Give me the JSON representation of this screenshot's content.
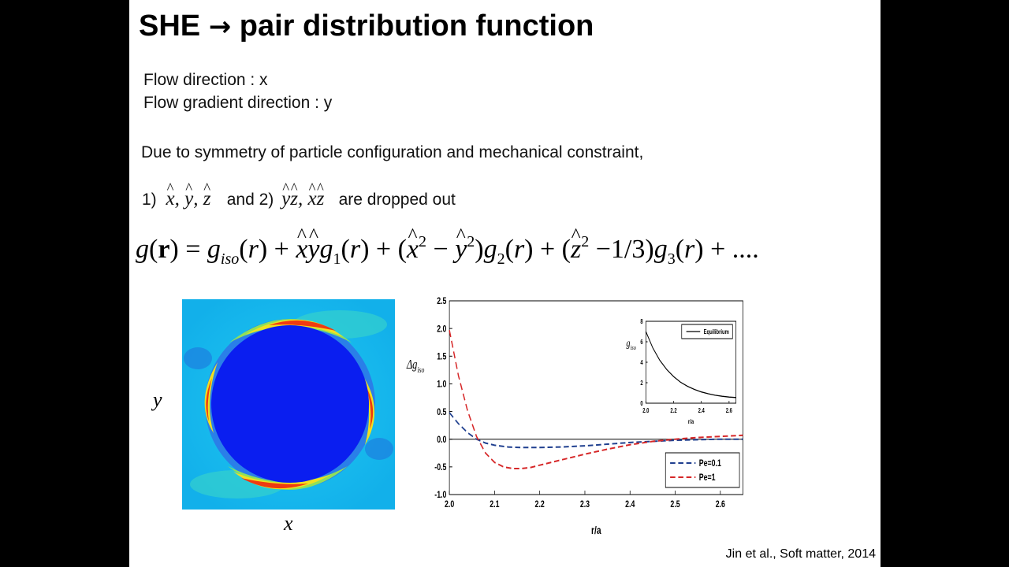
{
  "slide": {
    "title_left": "SHE",
    "title_arrow": "→",
    "title_right": "pair distribution function",
    "flow_direction": "Flow direction : x",
    "flow_gradient": "Flow gradient direction : y",
    "symmetry_text": "Due to symmetry of particle configuration and mechanical constraint,",
    "dropped_prefix": "1)",
    "dropped_terms_1": "x, y, z",
    "dropped_middle": "and 2)",
    "dropped_terms_2": "yz, xz",
    "dropped_suffix": "are dropped out",
    "equation": "g(r) = g_iso(r) + x̂ŷ g1(r) + (x̂² − ŷ²) g2(r) + (ẑ² − 1/3) g3(r) + ....",
    "heatmap_x_label": "x",
    "heatmap_y_label": "y",
    "citation": "Jin et al., Soft matter, 2014"
  },
  "colors": {
    "background": "#000000",
    "slide": "#ffffff",
    "pe01": "#1f3f8f",
    "pe1": "#d62728",
    "heat_bg": "#18b8ee",
    "heat_core": "#0a1ef0"
  },
  "chart_data": [
    {
      "type": "line",
      "title": "",
      "xlabel": "r/a",
      "ylabel": "Δg_iso",
      "xlim": [
        2.0,
        2.65
      ],
      "ylim": [
        -1.0,
        2.5
      ],
      "xticks": [
        2.0,
        2.1,
        2.2,
        2.3,
        2.4,
        2.5,
        2.6
      ],
      "yticks": [
        -1.0,
        -0.5,
        0.0,
        0.5,
        1.0,
        1.5,
        2.0,
        2.5
      ],
      "xtick_labels": [
        "2.0",
        "2.1",
        "2.2",
        "2.3",
        "2.4",
        "2.5",
        "2.6"
      ],
      "ytick_labels": [
        "-1.0",
        "-0.5",
        "0.0",
        "0.5",
        "1.0",
        "1.5",
        "2.0",
        "2.5"
      ],
      "legend_position": "bottom-right",
      "series": [
        {
          "name": "Pe=0.1",
          "style": "dashed",
          "color": "#1f3f8f",
          "x": [
            2.0,
            2.02,
            2.04,
            2.06,
            2.08,
            2.1,
            2.13,
            2.16,
            2.2,
            2.25,
            2.3,
            2.35,
            2.4,
            2.45,
            2.5,
            2.55,
            2.6,
            2.65
          ],
          "y": [
            0.48,
            0.28,
            0.12,
            0.0,
            -0.07,
            -0.11,
            -0.14,
            -0.15,
            -0.15,
            -0.14,
            -0.12,
            -0.09,
            -0.06,
            -0.04,
            -0.02,
            -0.01,
            0.0,
            0.0
          ]
        },
        {
          "name": "Pe=1",
          "style": "dashed",
          "color": "#d62728",
          "x": [
            2.0,
            2.02,
            2.04,
            2.06,
            2.08,
            2.1,
            2.12,
            2.14,
            2.16,
            2.18,
            2.2,
            2.25,
            2.3,
            2.35,
            2.4,
            2.45,
            2.5,
            2.55,
            2.6,
            2.65
          ],
          "y": [
            1.97,
            1.15,
            0.52,
            0.05,
            -0.25,
            -0.42,
            -0.5,
            -0.53,
            -0.53,
            -0.51,
            -0.47,
            -0.37,
            -0.27,
            -0.18,
            -0.1,
            -0.04,
            0.0,
            0.03,
            0.05,
            0.07
          ]
        }
      ]
    },
    {
      "type": "line",
      "title": "",
      "xlabel": "r/a",
      "ylabel": "g_iso",
      "xlim": [
        2.0,
        2.65
      ],
      "ylim": [
        0,
        8
      ],
      "xticks": [
        2.0,
        2.2,
        2.4,
        2.6
      ],
      "yticks": [
        0,
        2,
        4,
        6,
        8
      ],
      "xtick_labels": [
        "2.0",
        "2.2",
        "2.4",
        "2.6"
      ],
      "ytick_labels": [
        "0",
        "2",
        "4",
        "6",
        "8"
      ],
      "legend_position": "top-right",
      "series": [
        {
          "name": "Equilibrium",
          "style": "solid",
          "color": "#000000",
          "x": [
            2.0,
            2.05,
            2.1,
            2.15,
            2.2,
            2.25,
            2.3,
            2.35,
            2.4,
            2.45,
            2.5,
            2.55,
            2.6,
            2.65
          ],
          "y": [
            7.0,
            5.4,
            4.2,
            3.3,
            2.6,
            2.05,
            1.65,
            1.35,
            1.1,
            0.92,
            0.78,
            0.68,
            0.6,
            0.55
          ]
        }
      ]
    }
  ]
}
